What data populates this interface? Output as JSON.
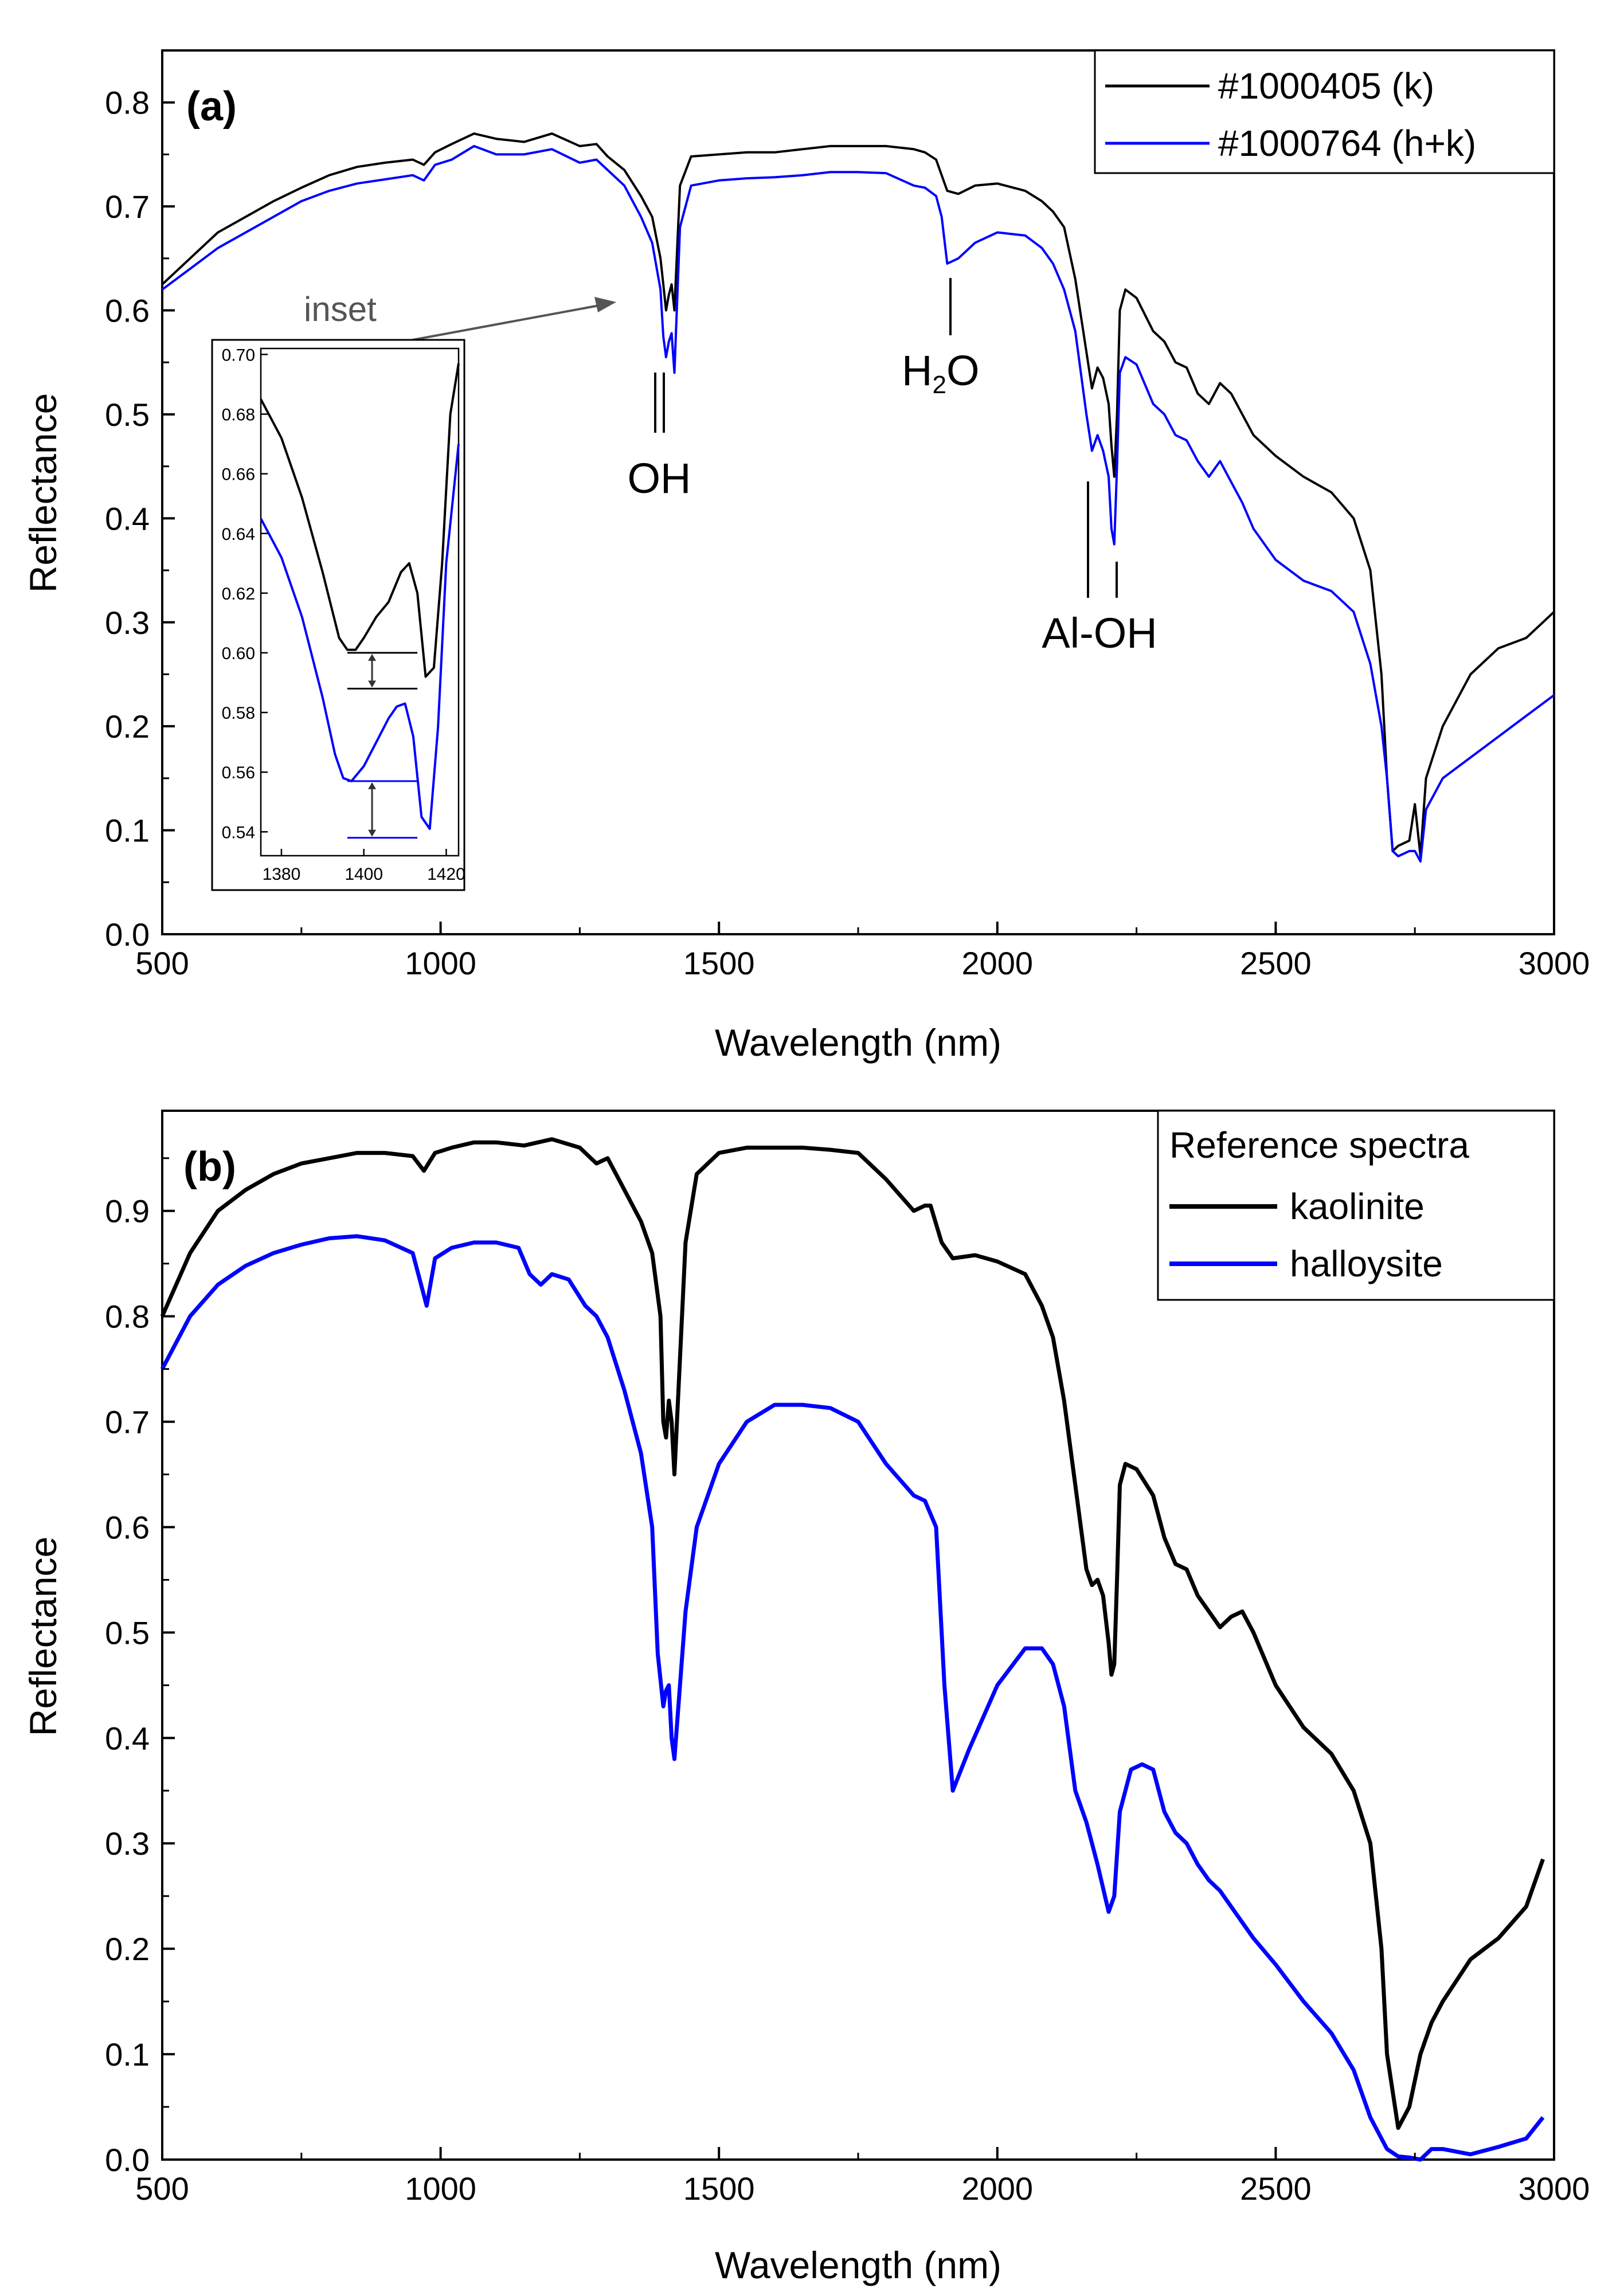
{
  "chart_data": [
    {
      "type": "line",
      "panel_label": "(a)",
      "xlabel": "Wavelength (nm)",
      "ylabel": "Reflectance",
      "xlim": [
        500,
        3000
      ],
      "ylim": [
        0.0,
        0.85
      ],
      "xticks": [
        "500",
        "1000",
        "1500",
        "2000",
        "2500",
        "3000"
      ],
      "yticks": [
        "0.0",
        "0.1",
        "0.2",
        "0.3",
        "0.4",
        "0.5",
        "0.6",
        "0.7",
        "0.8"
      ],
      "grid": false,
      "legend_position": "top-right",
      "series": [
        {
          "name": "#1000405 (k)",
          "color": "#000000",
          "x": [
            500,
            550,
            600,
            650,
            700,
            750,
            800,
            850,
            900,
            950,
            970,
            990,
            1020,
            1060,
            1100,
            1150,
            1200,
            1250,
            1280,
            1300,
            1330,
            1360,
            1380,
            1395,
            1400,
            1405,
            1410,
            1415,
            1420,
            1430,
            1450,
            1500,
            1550,
            1600,
            1650,
            1700,
            1750,
            1800,
            1850,
            1870,
            1890,
            1910,
            1930,
            1960,
            2000,
            2050,
            2080,
            2100,
            2120,
            2140,
            2160,
            2170,
            2180,
            2190,
            2200,
            2205,
            2210,
            2215,
            2220,
            2230,
            2250,
            2280,
            2300,
            2320,
            2340,
            2360,
            2380,
            2400,
            2420,
            2440,
            2460,
            2500,
            2550,
            2600,
            2640,
            2670,
            2690,
            2700,
            2710,
            2720,
            2740,
            2750,
            2755,
            2760,
            2770,
            2800,
            2850,
            2900,
            2950,
            3000
          ],
          "values": [
            0.625,
            0.65,
            0.675,
            0.69,
            0.705,
            0.718,
            0.73,
            0.738,
            0.742,
            0.745,
            0.74,
            0.752,
            0.76,
            0.77,
            0.765,
            0.762,
            0.77,
            0.758,
            0.76,
            0.748,
            0.735,
            0.71,
            0.69,
            0.65,
            0.625,
            0.6,
            0.615,
            0.625,
            0.6,
            0.72,
            0.748,
            0.75,
            0.752,
            0.752,
            0.755,
            0.758,
            0.758,
            0.758,
            0.755,
            0.752,
            0.745,
            0.715,
            0.712,
            0.72,
            0.722,
            0.715,
            0.705,
            0.695,
            0.68,
            0.63,
            0.56,
            0.525,
            0.545,
            0.535,
            0.51,
            0.47,
            0.44,
            0.5,
            0.6,
            0.62,
            0.612,
            0.58,
            0.57,
            0.55,
            0.545,
            0.52,
            0.51,
            0.53,
            0.52,
            0.5,
            0.48,
            0.46,
            0.44,
            0.425,
            0.4,
            0.35,
            0.25,
            0.15,
            0.08,
            0.085,
            0.09,
            0.125,
            0.1,
            0.075,
            0.15,
            0.2,
            0.25,
            0.275,
            0.285,
            0.31
          ]
        },
        {
          "name": "#1000764 (h+k)",
          "color": "#0000ff",
          "x": [
            500,
            550,
            600,
            650,
            700,
            750,
            800,
            850,
            900,
            950,
            970,
            990,
            1020,
            1060,
            1100,
            1150,
            1200,
            1250,
            1280,
            1300,
            1330,
            1360,
            1380,
            1395,
            1400,
            1405,
            1410,
            1415,
            1420,
            1430,
            1450,
            1500,
            1550,
            1600,
            1650,
            1700,
            1750,
            1800,
            1850,
            1870,
            1890,
            1900,
            1910,
            1930,
            1960,
            2000,
            2050,
            2080,
            2100,
            2120,
            2140,
            2160,
            2170,
            2180,
            2190,
            2200,
            2205,
            2210,
            2215,
            2220,
            2230,
            2250,
            2280,
            2300,
            2320,
            2340,
            2360,
            2380,
            2400,
            2420,
            2440,
            2460,
            2500,
            2550,
            2600,
            2640,
            2670,
            2690,
            2700,
            2710,
            2720,
            2740,
            2750,
            2755,
            2760,
            2770,
            2800,
            2850,
            2900,
            2950,
            3000
          ],
          "values": [
            0.62,
            0.64,
            0.66,
            0.675,
            0.69,
            0.705,
            0.715,
            0.722,
            0.726,
            0.73,
            0.725,
            0.74,
            0.745,
            0.758,
            0.75,
            0.75,
            0.755,
            0.742,
            0.745,
            0.735,
            0.72,
            0.69,
            0.665,
            0.62,
            0.575,
            0.555,
            0.57,
            0.578,
            0.54,
            0.68,
            0.72,
            0.725,
            0.727,
            0.728,
            0.73,
            0.733,
            0.733,
            0.732,
            0.72,
            0.718,
            0.71,
            0.69,
            0.645,
            0.65,
            0.665,
            0.675,
            0.672,
            0.66,
            0.645,
            0.62,
            0.58,
            0.5,
            0.465,
            0.48,
            0.465,
            0.44,
            0.39,
            0.375,
            0.45,
            0.54,
            0.555,
            0.548,
            0.51,
            0.5,
            0.48,
            0.475,
            0.455,
            0.44,
            0.455,
            0.435,
            0.415,
            0.39,
            0.36,
            0.34,
            0.33,
            0.31,
            0.26,
            0.2,
            0.15,
            0.08,
            0.075,
            0.08,
            0.08,
            0.075,
            0.07,
            0.12,
            0.15,
            0.17,
            0.19,
            0.21,
            0.23
          ]
        }
      ],
      "annotations": [
        "OH",
        "H",
        "2",
        "O",
        "Al-OH"
      ],
      "inset": {
        "label": "inset",
        "xlim": [
          1375,
          1423
        ],
        "ylim": [
          0.532,
          0.702
        ],
        "xticks": [
          "1380",
          "1400",
          "1420"
        ],
        "yticks": [
          "0.54",
          "0.56",
          "0.58",
          "0.60",
          "0.62",
          "0.64",
          "0.66",
          "0.68",
          "0.70"
        ],
        "series": [
          {
            "name": "#1000405 (k)",
            "color": "#000000",
            "x": [
              1375,
              1380,
              1385,
              1390,
              1394,
              1396,
              1398,
              1400,
              1403,
              1406,
              1409,
              1411,
              1413,
              1415,
              1417,
              1419,
              1421,
              1423
            ],
            "values": [
              0.685,
              0.672,
              0.652,
              0.627,
              0.605,
              0.601,
              0.601,
              0.605,
              0.612,
              0.617,
              0.627,
              0.63,
              0.62,
              0.592,
              0.595,
              0.63,
              0.68,
              0.697
            ]
          },
          {
            "name": "#1000764 (h+k)",
            "color": "#0000ff",
            "x": [
              1375,
              1380,
              1385,
              1390,
              1393,
              1395,
              1397,
              1400,
              1403,
              1406,
              1408,
              1410,
              1412,
              1414,
              1416,
              1418,
              1420,
              1423
            ],
            "values": [
              0.645,
              0.632,
              0.612,
              0.585,
              0.566,
              0.558,
              0.557,
              0.562,
              0.57,
              0.578,
              0.582,
              0.583,
              0.572,
              0.545,
              0.541,
              0.575,
              0.63,
              0.67
            ]
          }
        ],
        "depth_markers": [
          {
            "color": "#000000",
            "from": 0.6,
            "to": 0.588
          },
          {
            "color": "#0000ff",
            "from": 0.557,
            "to": 0.538
          }
        ]
      }
    },
    {
      "type": "line",
      "panel_label": "(b)",
      "xlabel": "Wavelength (nm)",
      "ylabel": "Reflectance",
      "xlim": [
        500,
        3000
      ],
      "ylim": [
        0.0,
        0.995
      ],
      "xticks": [
        "500",
        "1000",
        "1500",
        "2000",
        "2500",
        "3000"
      ],
      "yticks": [
        "0.0",
        "0.1",
        "0.2",
        "0.3",
        "0.4",
        "0.5",
        "0.6",
        "0.7",
        "0.8",
        "0.9"
      ],
      "grid": false,
      "legend_position": "top-right",
      "legend_title": "Reference spectra",
      "series": [
        {
          "name": "kaolinite",
          "color": "#000000",
          "x": [
            500,
            550,
            600,
            650,
            700,
            750,
            800,
            850,
            900,
            950,
            970,
            990,
            1020,
            1060,
            1100,
            1150,
            1200,
            1250,
            1280,
            1300,
            1330,
            1360,
            1380,
            1395,
            1400,
            1405,
            1410,
            1415,
            1420,
            1440,
            1460,
            1500,
            1550,
            1600,
            1650,
            1700,
            1750,
            1800,
            1850,
            1870,
            1880,
            1900,
            1920,
            1960,
            2000,
            2050,
            2080,
            2100,
            2120,
            2140,
            2160,
            2170,
            2180,
            2190,
            2200,
            2205,
            2210,
            2215,
            2220,
            2230,
            2250,
            2280,
            2300,
            2320,
            2340,
            2360,
            2380,
            2400,
            2420,
            2440,
            2460,
            2500,
            2550,
            2600,
            2640,
            2670,
            2690,
            2700,
            2720,
            2740,
            2760,
            2780,
            2800,
            2850,
            2900,
            2950,
            2980
          ],
          "values": [
            0.8,
            0.86,
            0.9,
            0.92,
            0.935,
            0.945,
            0.95,
            0.955,
            0.955,
            0.952,
            0.938,
            0.955,
            0.96,
            0.965,
            0.965,
            0.962,
            0.968,
            0.96,
            0.945,
            0.95,
            0.92,
            0.89,
            0.86,
            0.8,
            0.7,
            0.685,
            0.72,
            0.7,
            0.65,
            0.87,
            0.935,
            0.955,
            0.96,
            0.96,
            0.96,
            0.958,
            0.955,
            0.93,
            0.9,
            0.905,
            0.905,
            0.87,
            0.855,
            0.858,
            0.852,
            0.84,
            0.81,
            0.78,
            0.72,
            0.64,
            0.56,
            0.545,
            0.55,
            0.535,
            0.49,
            0.46,
            0.47,
            0.55,
            0.64,
            0.66,
            0.655,
            0.63,
            0.59,
            0.565,
            0.56,
            0.535,
            0.52,
            0.505,
            0.515,
            0.52,
            0.5,
            0.45,
            0.41,
            0.385,
            0.35,
            0.3,
            0.2,
            0.1,
            0.03,
            0.05,
            0.1,
            0.13,
            0.15,
            0.19,
            0.21,
            0.24,
            0.285
          ]
        },
        {
          "name": "halloysite",
          "color": "#0000ff",
          "x": [
            500,
            550,
            600,
            650,
            700,
            750,
            800,
            850,
            900,
            950,
            965,
            975,
            990,
            1020,
            1060,
            1100,
            1140,
            1160,
            1180,
            1200,
            1230,
            1260,
            1280,
            1300,
            1330,
            1360,
            1380,
            1390,
            1400,
            1405,
            1410,
            1415,
            1420,
            1440,
            1460,
            1500,
            1550,
            1600,
            1650,
            1700,
            1750,
            1800,
            1850,
            1870,
            1890,
            1905,
            1920,
            1950,
            2000,
            2050,
            2080,
            2100,
            2120,
            2140,
            2160,
            2180,
            2200,
            2210,
            2220,
            2240,
            2260,
            2280,
            2300,
            2320,
            2340,
            2360,
            2380,
            2400,
            2420,
            2440,
            2460,
            2500,
            2550,
            2600,
            2640,
            2670,
            2700,
            2720,
            2740,
            2760,
            2780,
            2800,
            2850,
            2900,
            2950,
            2980
          ],
          "values": [
            0.75,
            0.8,
            0.83,
            0.848,
            0.86,
            0.868,
            0.874,
            0.876,
            0.872,
            0.86,
            0.83,
            0.81,
            0.855,
            0.865,
            0.87,
            0.87,
            0.865,
            0.84,
            0.83,
            0.84,
            0.835,
            0.81,
            0.8,
            0.78,
            0.73,
            0.67,
            0.6,
            0.48,
            0.43,
            0.445,
            0.45,
            0.4,
            0.38,
            0.52,
            0.6,
            0.66,
            0.7,
            0.716,
            0.716,
            0.713,
            0.7,
            0.66,
            0.63,
            0.625,
            0.6,
            0.45,
            0.35,
            0.39,
            0.45,
            0.485,
            0.485,
            0.47,
            0.43,
            0.35,
            0.32,
            0.28,
            0.235,
            0.25,
            0.33,
            0.37,
            0.375,
            0.37,
            0.33,
            0.31,
            0.3,
            0.28,
            0.265,
            0.255,
            0.24,
            0.225,
            0.21,
            0.185,
            0.15,
            0.12,
            0.085,
            0.04,
            0.01,
            0.003,
            0.002,
            0.0,
            0.01,
            0.01,
            0.005,
            0.012,
            0.02,
            0.04
          ]
        }
      ]
    }
  ]
}
